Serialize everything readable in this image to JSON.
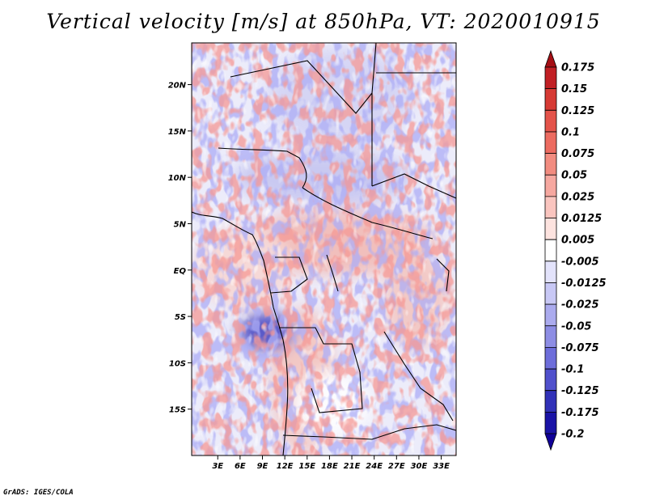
{
  "chart_data": {
    "type": "heatmap",
    "title": "Vertical velocity [m/s] at 850hPa, VT: 2020010915",
    "variable": "Vertical velocity",
    "units": "m/s",
    "level": "850hPa",
    "valid_time": "2020010915",
    "x_axis": {
      "range": [
        -0.5,
        35
      ],
      "ticks": [
        3,
        6,
        9,
        12,
        15,
        18,
        21,
        24,
        27,
        30,
        33
      ],
      "tick_labels": [
        "3E",
        "6E",
        "9E",
        "12E",
        "15E",
        "18E",
        "21E",
        "24E",
        "27E",
        "30E",
        "33E"
      ]
    },
    "y_axis": {
      "range": [
        -20,
        24.5
      ],
      "ticks": [
        20,
        15,
        10,
        5,
        0,
        -5,
        -10,
        -15
      ],
      "tick_labels": [
        "20N",
        "15N",
        "10N",
        "5N",
        "EQ",
        "5S",
        "10S",
        "15S"
      ]
    },
    "colorbar": {
      "levels": [
        0.175,
        0.15,
        0.125,
        0.1,
        0.075,
        0.05,
        0.025,
        0.0125,
        0.005,
        -0.005,
        -0.0125,
        -0.025,
        -0.05,
        -0.075,
        -0.1,
        -0.125,
        -0.175,
        -0.2
      ],
      "labels": [
        "0.175",
        "0.15",
        "0.125",
        "0.1",
        "0.075",
        "0.05",
        "0.025",
        "0.0125",
        "0.005",
        "-0.005",
        "-0.0125",
        "-0.025",
        "-0.05",
        "-0.075",
        "-0.1",
        "-0.125",
        "-0.175",
        "-0.2"
      ],
      "colors": [
        "#a50f15",
        "#c11f24",
        "#d63a34",
        "#e4534a",
        "#ec6b60",
        "#f28c80",
        "#f6a8a0",
        "#fac5bf",
        "#fde3df",
        "#ffffff",
        "#e3e3fb",
        "#c8c8f5",
        "#ababee",
        "#8d8de4",
        "#6d6dda",
        "#5050cc",
        "#3131b8",
        "#1a13a6",
        "#100098"
      ]
    }
  },
  "credit": "GrADS: IGES/COLA"
}
